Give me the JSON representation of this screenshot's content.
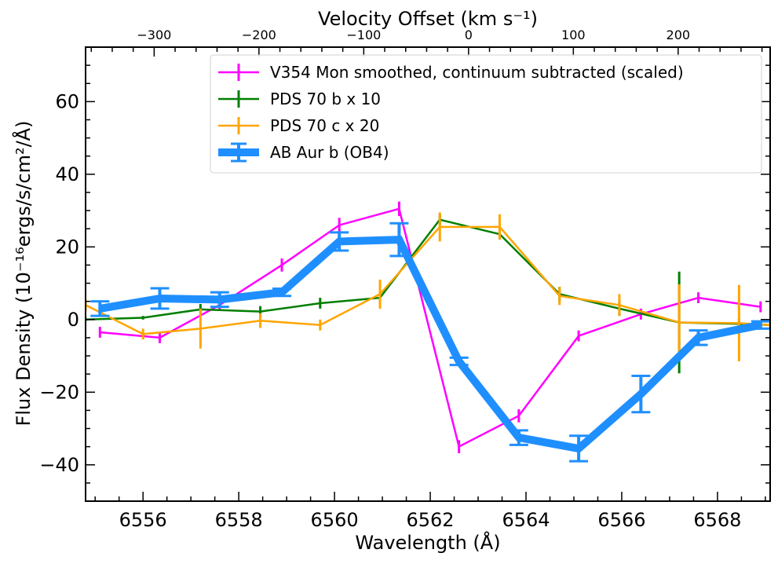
{
  "chart_data": {
    "type": "line",
    "xlabel": "Wavelength (Å)",
    "ylabel": "Flux Density (10⁻¹⁶ergs/s/cm²/Å)",
    "top_xlabel": "Velocity Offset (km s⁻¹)",
    "xlim": [
      6554.8,
      6569.1
    ],
    "ylim": [
      -50,
      75
    ],
    "x_ticks": [
      6556,
      6558,
      6560,
      6562,
      6564,
      6566,
      6568
    ],
    "y_ticks": [
      -40,
      -20,
      0,
      20,
      40,
      60
    ],
    "top_ticks": [
      -300,
      -200,
      -100,
      0,
      100,
      200
    ],
    "top_tick_labels": [
      "−300",
      "−200",
      "−100",
      "0",
      "100",
      "200"
    ],
    "velocity_reference": {
      "rest_wavelength": 6562.8,
      "c_kms": 299792.458
    },
    "grid": false,
    "legend_position": "upper-right",
    "series": [
      {
        "name": "V354 Mon smoothed, continuum subtracted (scaled)",
        "color": "#ff00ff",
        "width": 2.5,
        "capsize": 0,
        "points": [
          {
            "x": 6555.1,
            "y": -3.5,
            "err": 1.5
          },
          {
            "x": 6556.35,
            "y": -5.0,
            "err": 1.5
          },
          {
            "x": 6557.6,
            "y": 4.0,
            "err": 1.5
          },
          {
            "x": 6558.9,
            "y": 15.0,
            "err": 1.8
          },
          {
            "x": 6560.1,
            "y": 26.0,
            "err": 2.0
          },
          {
            "x": 6561.35,
            "y": 30.5,
            "err": 2.0
          },
          {
            "x": 6562.6,
            "y": -35.0,
            "err": 1.8
          },
          {
            "x": 6563.85,
            "y": -26.5,
            "err": 1.8
          },
          {
            "x": 6565.1,
            "y": -4.5,
            "err": 1.5
          },
          {
            "x": 6566.4,
            "y": 1.5,
            "err": 1.5
          },
          {
            "x": 6567.6,
            "y": 6.0,
            "err": 1.5
          },
          {
            "x": 6568.9,
            "y": 3.5,
            "err": 1.5
          }
        ]
      },
      {
        "name": "PDS 70 b x 10",
        "color": "#007f00",
        "width": 2.5,
        "capsize": 0,
        "points": [
          {
            "x": 6554.8,
            "y": 0.0,
            "err": 0.5
          },
          {
            "x": 6556.0,
            "y": 0.5,
            "err": 0.5
          },
          {
            "x": 6557.2,
            "y": 2.8,
            "err": 1.5
          },
          {
            "x": 6558.45,
            "y": 2.2,
            "err": 1.5
          },
          {
            "x": 6559.7,
            "y": 4.5,
            "err": 1.5
          },
          {
            "x": 6560.95,
            "y": 6.0,
            "err": 1.5
          },
          {
            "x": 6562.2,
            "y": 27.5,
            "err": 1.5
          },
          {
            "x": 6563.45,
            "y": 23.5,
            "err": 1.5
          },
          {
            "x": 6564.7,
            "y": 7.0,
            "err": 2.0
          },
          {
            "x": 6565.95,
            "y": 3.0,
            "err": 2.0
          },
          {
            "x": 6567.2,
            "y": -0.8,
            "err": 14.0
          },
          {
            "x": 6568.45,
            "y": -1.2,
            "err": 1.5
          },
          {
            "x": 6569.1,
            "y": -1.5,
            "err": 1.0
          }
        ]
      },
      {
        "name": "PDS 70 c x 20",
        "color": "#ffa500",
        "width": 2.5,
        "capsize": 0,
        "points": [
          {
            "x": 6554.8,
            "y": 4.0,
            "err": 1.5
          },
          {
            "x": 6556.0,
            "y": -4.0,
            "err": 1.5
          },
          {
            "x": 6557.2,
            "y": -2.5,
            "err": 5.5
          },
          {
            "x": 6558.45,
            "y": -0.3,
            "err": 2.0
          },
          {
            "x": 6559.7,
            "y": -1.5,
            "err": 1.5
          },
          {
            "x": 6560.95,
            "y": 7.0,
            "err": 4.0
          },
          {
            "x": 6562.2,
            "y": 25.5,
            "err": 4.0
          },
          {
            "x": 6563.45,
            "y": 25.5,
            "err": 3.5
          },
          {
            "x": 6564.7,
            "y": 6.5,
            "err": 2.5
          },
          {
            "x": 6565.95,
            "y": 4.0,
            "err": 3.0
          },
          {
            "x": 6567.2,
            "y": -0.8,
            "err": 10.5
          },
          {
            "x": 6568.45,
            "y": -1.0,
            "err": 10.5
          },
          {
            "x": 6569.1,
            "y": -1.5,
            "err": 1.0
          }
        ]
      },
      {
        "name": "AB Aur b (OB4)",
        "color": "#1f8fff",
        "width": 10,
        "capsize": 12,
        "points": [
          {
            "x": 6555.1,
            "y": 3.0,
            "err": 2.0
          },
          {
            "x": 6556.35,
            "y": 5.8,
            "err": 2.8
          },
          {
            "x": 6557.6,
            "y": 5.5,
            "err": 2.0
          },
          {
            "x": 6558.9,
            "y": 7.5,
            "err": 1.0
          },
          {
            "x": 6560.1,
            "y": 21.5,
            "err": 2.5
          },
          {
            "x": 6561.35,
            "y": 22.0,
            "err": 4.5
          },
          {
            "x": 6562.6,
            "y": -11.5,
            "err": 1.0
          },
          {
            "x": 6563.85,
            "y": -32.5,
            "err": 2.0
          },
          {
            "x": 6565.1,
            "y": -35.5,
            "err": 3.5
          },
          {
            "x": 6566.4,
            "y": -20.5,
            "err": 5.0
          },
          {
            "x": 6567.6,
            "y": -5.0,
            "err": 2.0
          },
          {
            "x": 6568.9,
            "y": -1.5,
            "err": 1.0
          }
        ]
      }
    ]
  }
}
